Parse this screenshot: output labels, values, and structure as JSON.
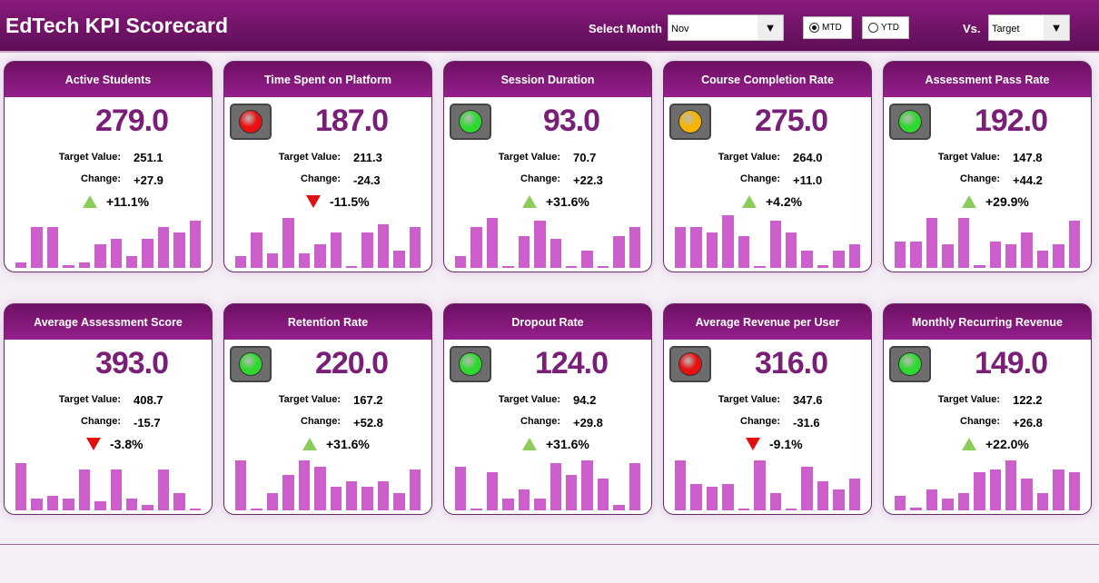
{
  "header": {
    "title": "EdTech KPI Scorecard",
    "select_month_label": "Select Month",
    "month": "Nov",
    "mtd": "MTD",
    "ytd": "YTD",
    "selected_period": "MTD",
    "vs_label": "Vs.",
    "vs_value": "Target"
  },
  "labels": {
    "target": "Target Value:",
    "change": "Change:"
  },
  "colors": {
    "green": "#2fd82f",
    "red": "#e81010",
    "yellow": "#f5b400"
  },
  "cards": [
    {
      "title": "Active Students",
      "value": "279.0",
      "target": "251.1",
      "change": "+27.9",
      "pct": "+11.1%",
      "dir": "up",
      "light": "none",
      "bars": [
        1,
        7,
        7,
        0.5,
        1,
        4,
        5,
        2,
        5,
        7,
        6,
        8
      ]
    },
    {
      "title": "Time Spent on Platform",
      "value": "187.0",
      "target": "211.3",
      "change": "-24.3",
      "pct": "-11.5%",
      "dir": "down",
      "light": "red",
      "bars": [
        2,
        6,
        2.5,
        8.5,
        2.5,
        4,
        6,
        0.2,
        6,
        7.5,
        3,
        7
      ]
    },
    {
      "title": "Session Duration",
      "value": "93.0",
      "target": "70.7",
      "change": "+22.3",
      "pct": "+31.6%",
      "dir": "up",
      "light": "green",
      "bars": [
        2,
        7,
        8.5,
        0.2,
        5.5,
        8,
        5,
        0.2,
        3,
        0.2,
        5.5,
        7
      ]
    },
    {
      "title": "Course Completion Rate",
      "value": "275.0",
      "target": "264.0",
      "change": "+11.0",
      "pct": "+4.2%",
      "dir": "up",
      "light": "yellow",
      "bars": [
        7,
        7,
        6,
        9,
        5.5,
        0.2,
        8,
        6,
        3,
        0.5,
        3,
        4
      ]
    },
    {
      "title": "Assessment Pass Rate",
      "value": "192.0",
      "target": "147.8",
      "change": "+44.2",
      "pct": "+29.9%",
      "dir": "up",
      "light": "green",
      "bars": [
        4.5,
        4.5,
        8.5,
        4,
        8.5,
        0.5,
        4.5,
        4,
        6,
        3,
        4,
        8
      ]
    },
    {
      "title": "Average Assessment Score",
      "value": "393.0",
      "target": "408.7",
      "change": "-15.7",
      "pct": "-3.8%",
      "dir": "down",
      "light": "none",
      "bars": [
        8,
        2,
        2.5,
        2,
        7,
        1.5,
        7,
        2,
        1,
        7,
        3,
        0
      ]
    },
    {
      "title": "Retention Rate",
      "value": "220.0",
      "target": "167.2",
      "change": "+52.8",
      "pct": "+31.6%",
      "dir": "up",
      "light": "green",
      "bars": [
        8.5,
        0.2,
        3,
        6,
        8.5,
        7.5,
        4,
        5,
        4,
        5,
        3,
        7
      ]
    },
    {
      "title": "Dropout Rate",
      "value": "124.0",
      "target": "94.2",
      "change": "+29.8",
      "pct": "+31.6%",
      "dir": "up",
      "light": "green",
      "bars": [
        7.5,
        0.3,
        6.5,
        2,
        3.5,
        2,
        8,
        6,
        8.5,
        5.5,
        1,
        8
      ]
    },
    {
      "title": "Average Revenue per User",
      "value": "316.0",
      "target": "347.6",
      "change": "-31.6",
      "pct": "-9.1%",
      "dir": "down",
      "light": "red",
      "bars": [
        8.5,
        4.5,
        4,
        4.5,
        0.2,
        8.5,
        3,
        0.3,
        7.5,
        5,
        3.5,
        5.5
      ]
    },
    {
      "title": "Monthly Recurring Revenue",
      "value": "149.0",
      "target": "122.2",
      "change": "+26.8",
      "pct": "+22.0%",
      "dir": "up",
      "light": "green",
      "bars": [
        2.5,
        0.5,
        3.5,
        2,
        3,
        6.5,
        7,
        8.5,
        5.5,
        3,
        7,
        6.5
      ]
    }
  ]
}
